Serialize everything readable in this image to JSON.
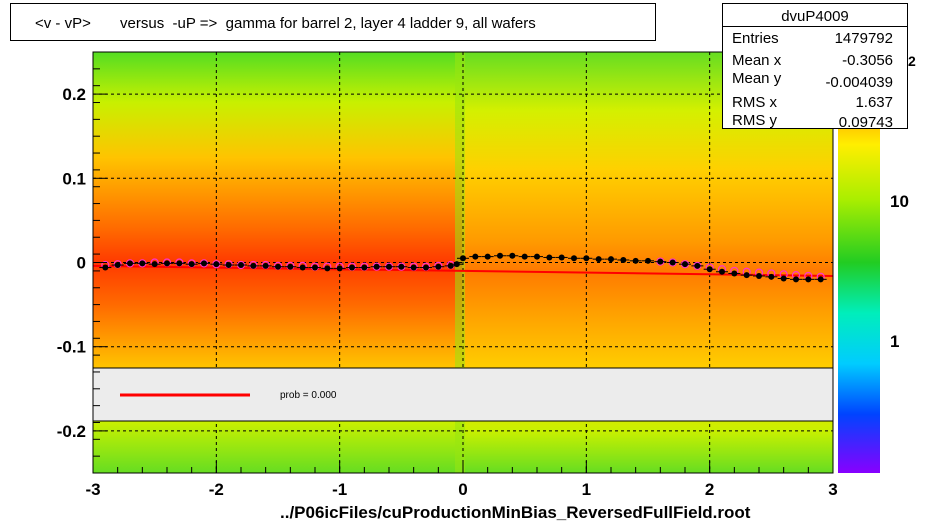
{
  "title": "<v - vP>       versus  -uP =>  gamma for barrel 2, layer 4 ladder 9, all wafers",
  "stats": {
    "name": "dvuP4009",
    "rows": [
      {
        "label": "Entries",
        "value": "1479792"
      },
      {
        "label": "Mean x",
        "value": "-0.3056"
      },
      {
        "label": "Mean y",
        "value": "-0.004039"
      },
      {
        "label": "RMS x",
        "value": "1.637"
      },
      {
        "label": "RMS y",
        "value": "0.09743"
      }
    ]
  },
  "xtitle": "../P06icFiles/cuProductionMinBias_ReversedFullField.root",
  "legend": {
    "fit_label": "prob = 0.000",
    "line_color": "#ff0000"
  },
  "palette": {
    "ticks": [
      "10",
      "1"
    ],
    "top_label_fragment": "2"
  },
  "chart_data": {
    "type": "heatmap",
    "xlim": [
      -3,
      3
    ],
    "ylim": [
      -0.25,
      0.25
    ],
    "xticks": [
      "-3",
      "-2",
      "-1",
      "0",
      "1",
      "2",
      "3"
    ],
    "yticks": [
      "0.2",
      "0.1",
      "0",
      "-0.1",
      "-0.2"
    ],
    "grid": true,
    "profile_black": {
      "x": [
        -2.9,
        -2.8,
        -2.7,
        -2.6,
        -2.5,
        -2.4,
        -2.3,
        -2.2,
        -2.1,
        -2.0,
        -1.9,
        -1.8,
        -1.7,
        -1.6,
        -1.5,
        -1.4,
        -1.3,
        -1.2,
        -1.1,
        -1.0,
        -0.9,
        -0.8,
        -0.7,
        -0.6,
        -0.5,
        -0.4,
        -0.3,
        -0.2,
        -0.1,
        -0.05,
        0.0,
        0.1,
        0.2,
        0.3,
        0.4,
        0.5,
        0.6,
        0.7,
        0.8,
        0.9,
        1.0,
        1.1,
        1.2,
        1.3,
        1.4,
        1.5,
        1.6,
        1.7,
        1.8,
        1.9,
        2.0,
        2.1,
        2.2,
        2.3,
        2.4,
        2.5,
        2.6,
        2.7,
        2.8,
        2.9
      ],
      "y": [
        -0.006,
        -0.003,
        -0.001,
        -0.001,
        -0.002,
        -0.001,
        -0.001,
        -0.002,
        -0.001,
        -0.002,
        -0.003,
        -0.003,
        -0.004,
        -0.004,
        -0.005,
        -0.005,
        -0.006,
        -0.006,
        -0.007,
        -0.007,
        -0.006,
        -0.006,
        -0.005,
        -0.005,
        -0.005,
        -0.006,
        -0.006,
        -0.005,
        -0.004,
        -0.002,
        0.005,
        0.007,
        0.007,
        0.008,
        0.008,
        0.007,
        0.007,
        0.006,
        0.006,
        0.005,
        0.005,
        0.004,
        0.004,
        0.003,
        0.002,
        0.002,
        0.001,
        0.0,
        -0.002,
        -0.004,
        -0.008,
        -0.011,
        -0.013,
        -0.015,
        -0.016,
        -0.017,
        -0.019,
        -0.02,
        -0.02,
        -0.02
      ]
    },
    "profile_magenta": {
      "x": [
        -2.9,
        -2.8,
        -2.7,
        -2.6,
        -2.5,
        -2.4,
        -2.3,
        -2.2,
        -2.1,
        -2.0,
        -1.9,
        -1.8,
        -1.7,
        -1.6,
        -1.5,
        -1.4,
        -1.3,
        -1.2,
        -1.1,
        -1.0,
        -0.9,
        -0.8,
        -0.7,
        -0.6,
        -0.5,
        -0.4,
        -0.3,
        -0.2,
        -0.1,
        1.6,
        1.7,
        1.8,
        1.9,
        2.0,
        2.1,
        2.2,
        2.3,
        2.4,
        2.5,
        2.6,
        2.7,
        2.8,
        2.9
      ],
      "y": [
        -0.003,
        -0.002,
        -0.001,
        -0.001,
        0.0,
        0.0,
        0.0,
        -0.001,
        -0.001,
        -0.002,
        -0.002,
        -0.003,
        -0.003,
        -0.003,
        -0.004,
        -0.004,
        -0.004,
        -0.005,
        -0.005,
        -0.005,
        -0.005,
        -0.005,
        -0.005,
        -0.005,
        -0.005,
        -0.005,
        -0.005,
        -0.004,
        -0.003,
        0.001,
        0.0,
        -0.002,
        -0.004,
        -0.006,
        -0.008,
        -0.01,
        -0.011,
        -0.012,
        -0.013,
        -0.014,
        -0.015,
        -0.016,
        -0.017
      ]
    },
    "fit_line": {
      "x": [
        -3,
        3
      ],
      "y": [
        -0.004,
        -0.016
      ]
    }
  }
}
